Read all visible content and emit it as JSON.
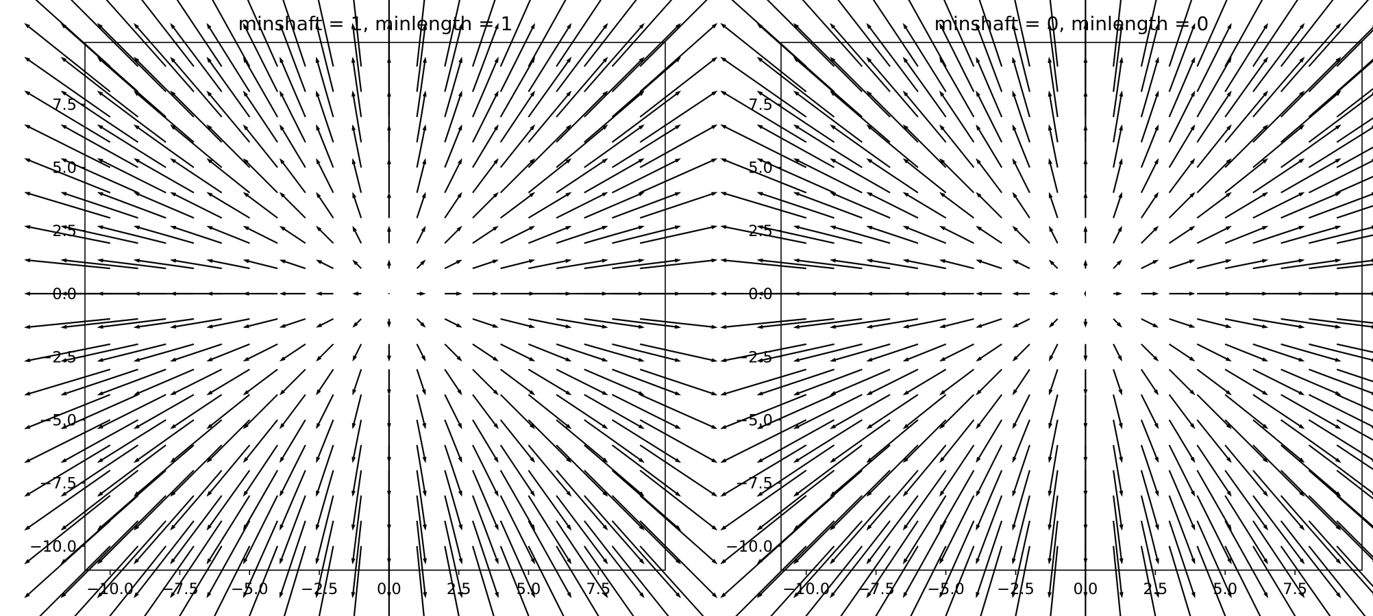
{
  "chart_data": [
    {
      "type": "quiver",
      "title": "minshaft = 1, minlength = 1",
      "xlabel": "",
      "ylabel": "",
      "xlim": [
        -10.9,
        9.9
      ],
      "ylim": [
        -10.95,
        9.95
      ],
      "xticks": [
        -10.0,
        -7.5,
        -5.0,
        -2.5,
        0.0,
        2.5,
        5.0,
        7.5
      ],
      "xtick_labels": [
        "−10.0",
        "−7.5",
        "−5.0",
        "−2.5",
        "0.0",
        "2.5",
        "5.0",
        "7.5"
      ],
      "yticks": [
        -10.0,
        -7.5,
        -5.0,
        -2.5,
        0.0,
        2.5,
        5.0,
        7.5
      ],
      "ytick_labels": [
        "−10.0",
        "−7.5",
        "−5.0",
        "−2.5",
        "0.0",
        "2.5",
        "5.0",
        "7.5"
      ],
      "grid": false,
      "field": {
        "x_values": [
          -10,
          -9,
          -8,
          -7,
          -6,
          -5,
          -4,
          -3,
          -2,
          -1,
          0,
          1,
          2,
          3,
          4,
          5,
          6,
          7,
          8,
          9
        ],
        "y_values": [
          -10,
          -9,
          -8,
          -7,
          -6,
          -5,
          -4,
          -3,
          -2,
          -1,
          0,
          1,
          2,
          3,
          4,
          5,
          6,
          7,
          8,
          9
        ],
        "u": "x",
        "v": "y",
        "minshaft": 1,
        "minlength": 1
      }
    },
    {
      "type": "quiver",
      "title": "minshaft = 0, minlength = 0",
      "xlabel": "",
      "ylabel": "",
      "xlim": [
        -10.9,
        9.9
      ],
      "ylim": [
        -10.95,
        9.95
      ],
      "xticks": [
        -10.0,
        -7.5,
        -5.0,
        -2.5,
        0.0,
        2.5,
        5.0,
        7.5
      ],
      "xtick_labels": [
        "−10.0",
        "−7.5",
        "−5.0",
        "−2.5",
        "0.0",
        "2.5",
        "5.0",
        "7.5"
      ],
      "yticks": [
        -10.0,
        -7.5,
        -5.0,
        -2.5,
        0.0,
        2.5,
        5.0,
        7.5
      ],
      "ytick_labels": [
        "−10.0",
        "−7.5",
        "−5.0",
        "−2.5",
        "0.0",
        "2.5",
        "5.0",
        "7.5"
      ],
      "grid": false,
      "field": {
        "x_values": [
          -10,
          -9,
          -8,
          -7,
          -6,
          -5,
          -4,
          -3,
          -2,
          -1,
          0,
          1,
          2,
          3,
          4,
          5,
          6,
          7,
          8,
          9
        ],
        "y_values": [
          -10,
          -9,
          -8,
          -7,
          -6,
          -5,
          -4,
          -3,
          -2,
          -1,
          0,
          1,
          2,
          3,
          4,
          5,
          6,
          7,
          8,
          9
        ],
        "u": "x",
        "v": "y",
        "minshaft": 0,
        "minlength": 0
      }
    }
  ],
  "colors": {
    "arrow": "#000000",
    "axes": "#000000",
    "background": "#ffffff"
  }
}
